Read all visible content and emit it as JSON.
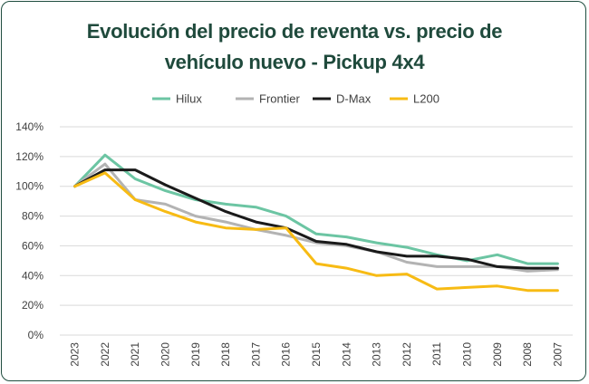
{
  "chart_data": {
    "type": "line",
    "title_line1": "Evolución del precio de reventa vs. precio de",
    "title_line2": "vehículo nuevo - Pickup 4x4",
    "xlabel": "",
    "ylabel": "",
    "ylim": [
      0,
      140
    ],
    "y_ticks": [
      "0%",
      "20%",
      "40%",
      "60%",
      "80%",
      "100%",
      "120%",
      "140%"
    ],
    "categories": [
      "2023",
      "2022",
      "2021",
      "2020",
      "2019",
      "2018",
      "2017",
      "2016",
      "2015",
      "2014",
      "2013",
      "2012",
      "2011",
      "2010",
      "2009",
      "2008",
      "2007"
    ],
    "legend_position": "top",
    "grid": true,
    "series": [
      {
        "name": "Hilux",
        "color": "#6cc5a3",
        "values": [
          100,
          121,
          105,
          97,
          91,
          88,
          86,
          80,
          68,
          66,
          62,
          59,
          54,
          50,
          54,
          48,
          48
        ]
      },
      {
        "name": "Frontier",
        "color": "#b3b3b3",
        "values": [
          100,
          115,
          91,
          88,
          80,
          76,
          71,
          67,
          62,
          60,
          56,
          49,
          46,
          46,
          46,
          43,
          44
        ]
      },
      {
        "name": "D-Max",
        "color": "#1a1a1a",
        "values": [
          100,
          111,
          111,
          101,
          92,
          83,
          76,
          72,
          63,
          61,
          56,
          53,
          53,
          51,
          46,
          45,
          45
        ]
      },
      {
        "name": "L200",
        "color": "#f7bb14",
        "values": [
          100,
          109,
          91,
          83,
          76,
          72,
          71,
          72,
          48,
          45,
          40,
          41,
          31,
          32,
          33,
          30,
          30
        ]
      }
    ]
  }
}
